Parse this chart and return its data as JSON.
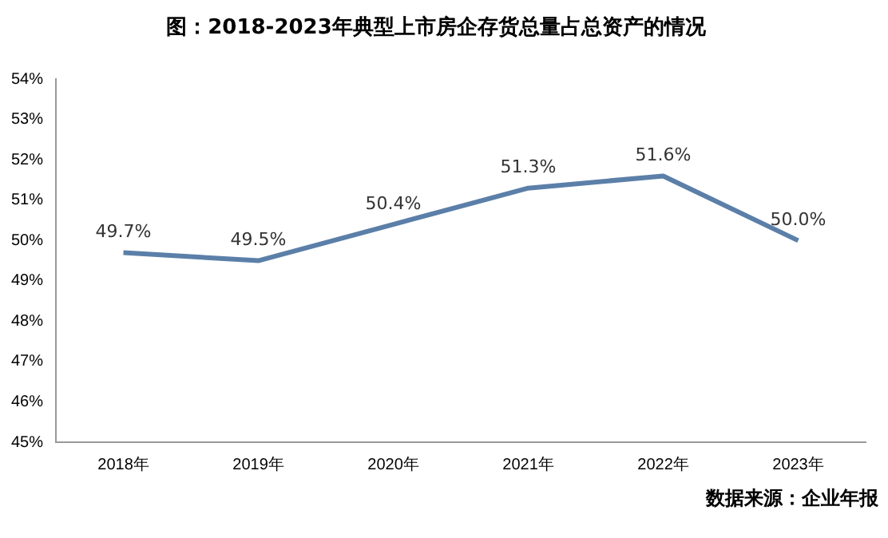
{
  "chart_data": {
    "type": "line",
    "title": "图：2018-2023年典型上市房企存货总量占总资产的情况",
    "categories": [
      "2018年",
      "2019年",
      "2020年",
      "2021年",
      "2022年",
      "2023年"
    ],
    "series": [
      {
        "color": "#5b7fa8",
        "values": [
          49.7,
          49.5,
          50.4,
          51.3,
          51.6,
          50.0
        ],
        "value_labels": [
          "49.7%",
          "49.5%",
          "50.4%",
          "51.3%",
          "51.6%",
          "50.0%"
        ]
      }
    ],
    "ylim": [
      45,
      54
    ],
    "yticks": [
      {
        "value": 45,
        "label": "45%"
      },
      {
        "value": 46,
        "label": "46%"
      },
      {
        "value": 47,
        "label": "47%"
      },
      {
        "value": 48,
        "label": "48%"
      },
      {
        "value": 49,
        "label": "49%"
      },
      {
        "value": 50,
        "label": "50%"
      },
      {
        "value": 51,
        "label": "51%"
      },
      {
        "value": 52,
        "label": "52%"
      },
      {
        "value": 53,
        "label": "53%"
      },
      {
        "value": 54,
        "label": "54%"
      }
    ],
    "grid": false,
    "legend": false,
    "marker": "none",
    "line_style": "solid",
    "annotations": [
      "数据来源：企业年报"
    ]
  }
}
